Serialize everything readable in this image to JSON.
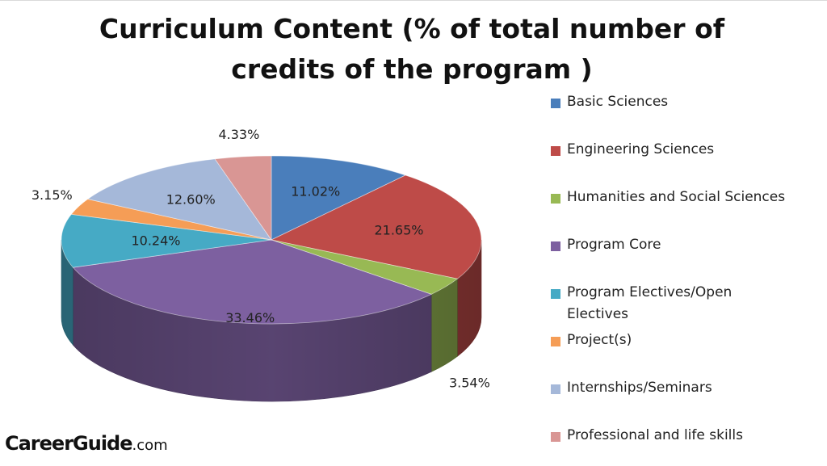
{
  "chart_data": {
    "type": "pie",
    "title": "Curriculum Content (% of total number of credits of the program )",
    "title_lines": [
      "Curriculum Content (% of total number of",
      "credits of the program )"
    ],
    "categories": [
      "Basic Sciences",
      "Engineering Sciences",
      "Humanities and Social Sciences",
      "Program Core",
      "Program Electives/Open Electives",
      "Project(s)",
      "Internships/Seminars",
      "Professional and life skills"
    ],
    "legend_lines": [
      [
        "Basic Sciences"
      ],
      [
        "Engineering Sciences"
      ],
      [
        "Humanities and Social Sciences"
      ],
      [
        "Program Core"
      ],
      [
        "Program Electives/Open",
        "Electives"
      ],
      [
        "Project(s)"
      ],
      [
        "Internships/Seminars"
      ],
      [
        "Professional and life skills"
      ]
    ],
    "values": [
      11.02,
      21.65,
      3.54,
      33.46,
      10.24,
      3.15,
      12.6,
      4.33
    ],
    "data_labels": [
      "11.02%",
      "21.65%",
      "3.54%",
      "33.46%",
      "10.24%",
      "3.15%",
      "12.60%",
      "4.33%"
    ],
    "colors": [
      "#4a7ebb",
      "#be4b48",
      "#98b954",
      "#7d60a0",
      "#46aac5",
      "#f59d56",
      "#a5b8d9",
      "#d99694"
    ],
    "legend_placement": "right",
    "style": "3d"
  },
  "brand": {
    "name": "CareerGuide",
    "suffix": ".com"
  }
}
